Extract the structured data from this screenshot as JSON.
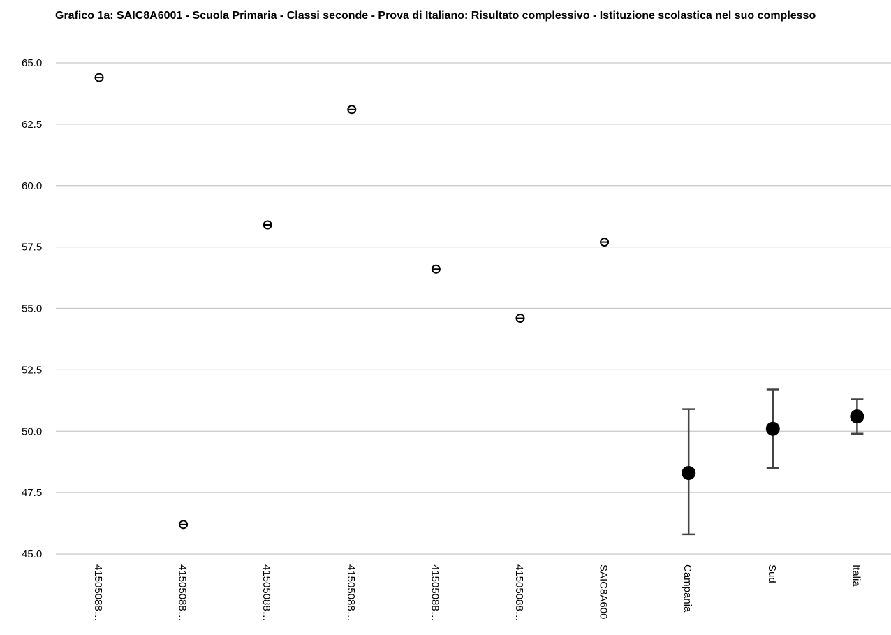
{
  "chart_data": {
    "type": "scatter",
    "title": "Grafico 1a: SAIC8A6001 - Scuola Primaria - Classi seconde - Prova di Italiano: Risultato complessivo - Istituzione scolastica nel suo complesso",
    "xlabel": "",
    "ylabel": "",
    "ylim": [
      45.0,
      65.0
    ],
    "yticks": [
      "65.0",
      "62.5",
      "60.0",
      "57.5",
      "55.0",
      "52.5",
      "50.0",
      "47.5",
      "45.0"
    ],
    "ytick_values": [
      65.0,
      62.5,
      60.0,
      57.5,
      55.0,
      52.5,
      50.0,
      47.5,
      45.0
    ],
    "grid": true,
    "legend": "none",
    "categories": [
      "41505088…",
      "41505088…",
      "41505088…",
      "41505088…",
      "41505088…",
      "41505088…",
      "SAIC8A600",
      "Campania",
      "Sud",
      "Italia"
    ],
    "values": [
      64.4,
      46.2,
      58.4,
      63.1,
      56.6,
      54.6,
      57.7,
      48.3,
      50.1,
      50.6
    ],
    "error_low": [
      null,
      null,
      null,
      null,
      null,
      null,
      null,
      45.8,
      48.5,
      49.9
    ],
    "error_high": [
      null,
      null,
      null,
      null,
      null,
      null,
      null,
      50.9,
      51.7,
      51.3
    ],
    "colors": {
      "marker": "#000000",
      "grid": "#c8c8c8",
      "errorbar": "#444444"
    }
  }
}
